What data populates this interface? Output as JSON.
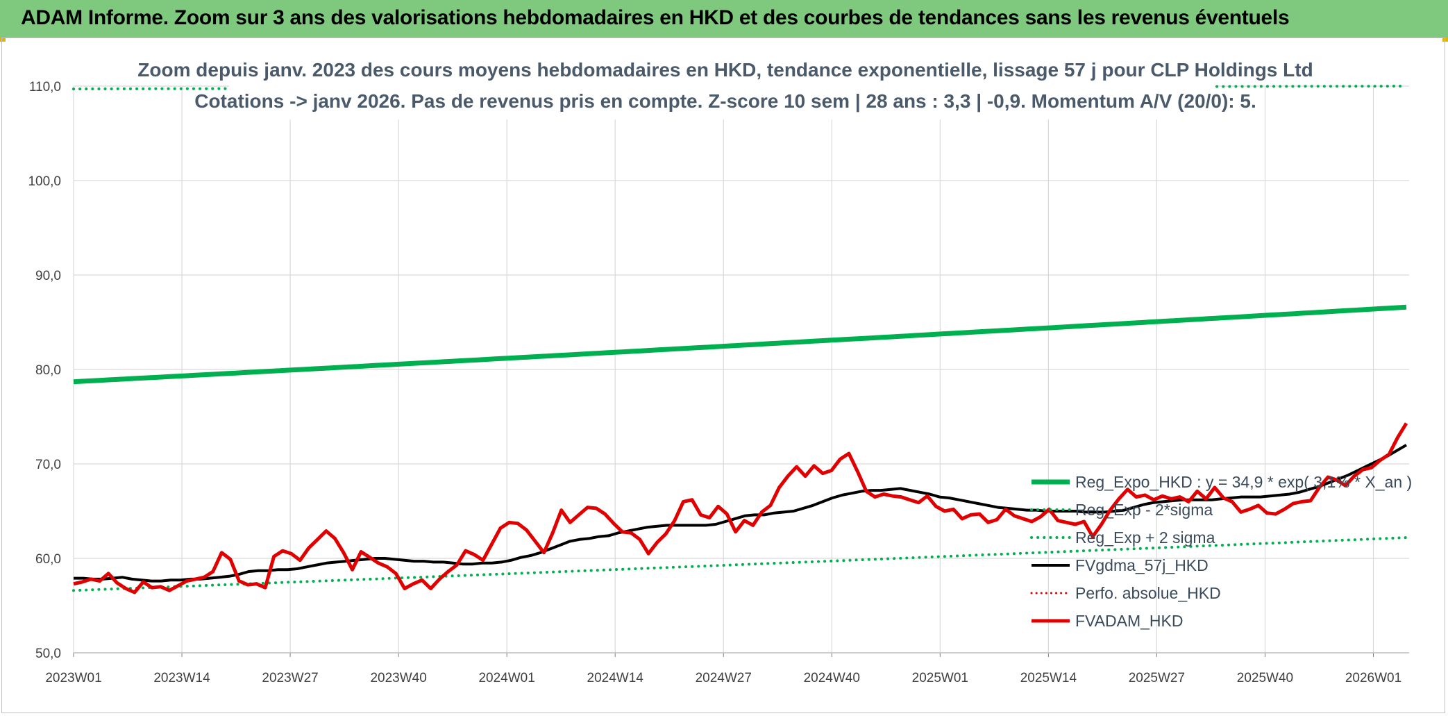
{
  "header": {
    "title": "ADAM Informe. Zoom sur 3 ans des valorisations hebdomadaires en HKD et des courbes de tendances sans les revenus éventuels"
  },
  "chart_data": {
    "type": "line",
    "title_line1": "Zoom depuis janv. 2023 des cours moyens hebdomadaires en HKD, tendance exponentielle, lissage 57 j pour CLP Holdings Ltd",
    "title_line2": "Cotations -> janv 2026. Pas de revenus pris en compte. Z-score 10 sem | 28 ans : 3,3 | -0,9. Momentum A/V (20/0): 5.",
    "ylim": [
      50,
      110
    ],
    "y_ticks": [
      "50,0",
      "60,0",
      "70,0",
      "80,0",
      "90,0",
      "100,0",
      "110,0"
    ],
    "x_ticks": [
      "2023W01",
      "2023W14",
      "2023W27",
      "2023W40",
      "2024W01",
      "2024W14",
      "2024W27",
      "2024W40",
      "2025W01",
      "2025W14",
      "2025W27",
      "2025W40",
      "2026W01"
    ],
    "grid": true,
    "legend_position": "right",
    "colors": {
      "reg_expo": "#00b050",
      "fvgdma": "#000000",
      "perfo": "#e00000",
      "fvadam": "#e00000"
    },
    "series": [
      {
        "name": "Reg_Expo_HKD : y = 34,9 * exp( 3,1% * X_an )",
        "style": "solid-thick",
        "color": "#00b050",
        "start": 78.7,
        "end": 86.6
      },
      {
        "name": "Reg_Exp - 2*sigma",
        "style": "dotted",
        "color": "#00b050",
        "start": 56.6,
        "end": 62.2
      },
      {
        "name": "Reg_Exp + 2 sigma",
        "style": "dotted",
        "color": "#00b050",
        "start": 109.7,
        "end": 110.0
      },
      {
        "name": "FVgdma_57j_HKD",
        "style": "solid",
        "color": "#000000",
        "values": [
          57.9,
          57.9,
          57.8,
          57.8,
          57.9,
          58.0,
          57.8,
          57.7,
          57.6,
          57.6,
          57.7,
          57.7,
          57.8,
          57.8,
          57.9,
          58.0,
          58.1,
          58.3,
          58.6,
          58.7,
          58.7,
          58.8,
          58.8,
          58.9,
          59.1,
          59.3,
          59.5,
          59.6,
          59.7,
          59.8,
          59.9,
          60.0,
          60.0,
          59.9,
          59.8,
          59.7,
          59.7,
          59.6,
          59.6,
          59.5,
          59.4,
          59.4,
          59.5,
          59.5,
          59.6,
          59.8,
          60.1,
          60.3,
          60.6,
          61.0,
          61.4,
          61.8,
          62.0,
          62.1,
          62.3,
          62.4,
          62.7,
          62.9,
          63.1,
          63.3,
          63.4,
          63.5,
          63.5,
          63.5,
          63.5,
          63.5,
          63.6,
          63.9,
          64.2,
          64.5,
          64.6,
          64.6,
          64.8,
          64.9,
          65.0,
          65.3,
          65.6,
          66.0,
          66.4,
          66.7,
          66.9,
          67.1,
          67.2,
          67.2,
          67.3,
          67.4,
          67.2,
          67.0,
          66.8,
          66.5,
          66.4,
          66.2,
          66.0,
          65.8,
          65.6,
          65.4,
          65.3,
          65.2,
          65.1,
          65.1,
          65.0,
          65.0,
          65.0,
          65.0,
          64.9,
          64.9,
          64.9,
          65.0,
          65.1,
          65.4,
          65.7,
          65.9,
          66.0,
          66.1,
          66.2,
          66.2,
          66.2,
          66.2,
          66.3,
          66.4,
          66.5,
          66.5,
          66.5,
          66.6,
          66.7,
          66.8,
          67.0,
          67.3,
          67.6,
          68.0,
          68.4,
          68.8,
          69.3,
          69.8,
          70.3,
          70.8,
          71.4,
          72.0
        ]
      },
      {
        "name": "Perfo. absolue_HKD",
        "style": "dotted",
        "color": "#e00000",
        "values": []
      },
      {
        "name": "FVADAM_HKD",
        "style": "solid-thick",
        "color": "#e00000",
        "values": [
          57.3,
          57.5,
          57.8,
          57.6,
          58.4,
          57.4,
          56.8,
          56.4,
          57.5,
          56.9,
          57.0,
          56.6,
          57.1,
          57.6,
          57.8,
          58.0,
          58.6,
          60.6,
          59.9,
          57.6,
          57.2,
          57.3,
          56.9,
          60.2,
          60.8,
          60.5,
          59.8,
          61.1,
          62.0,
          62.9,
          62.1,
          60.6,
          58.8,
          60.7,
          60.1,
          59.5,
          59.1,
          58.4,
          56.8,
          57.3,
          57.7,
          56.8,
          57.8,
          58.6,
          59.3,
          60.8,
          60.4,
          59.8,
          61.5,
          63.2,
          63.8,
          63.7,
          63.0,
          61.8,
          60.6,
          62.7,
          65.1,
          63.8,
          64.6,
          65.4,
          65.3,
          64.7,
          63.7,
          62.8,
          62.7,
          62.0,
          60.5,
          61.7,
          62.6,
          64.0,
          66.0,
          66.2,
          64.6,
          64.3,
          65.5,
          64.7,
          62.8,
          64.0,
          63.5,
          64.9,
          65.6,
          67.5,
          68.7,
          69.7,
          68.7,
          69.8,
          69.0,
          69.3,
          70.5,
          71.1,
          69.2,
          67.1,
          66.5,
          66.8,
          66.6,
          66.5,
          66.2,
          65.9,
          66.6,
          65.5,
          65.0,
          65.2,
          64.2,
          64.6,
          64.7,
          63.8,
          64.1,
          65.2,
          64.5,
          64.2,
          63.9,
          64.4,
          65.2,
          64.0,
          63.8,
          63.6,
          63.9,
          62.3,
          63.6,
          65.1,
          66.3,
          67.3,
          66.5,
          66.7,
          66.2,
          66.6,
          66.3,
          66.5,
          66.0,
          67.1,
          66.3,
          67.5,
          66.4,
          66.0,
          64.9,
          65.2,
          65.6,
          64.8,
          64.7,
          65.2,
          65.8,
          66.0,
          66.1,
          67.5,
          68.6,
          68.3,
          67.7,
          68.7,
          69.4,
          69.6,
          70.4,
          71.0,
          72.8,
          74.3
        ]
      }
    ]
  }
}
